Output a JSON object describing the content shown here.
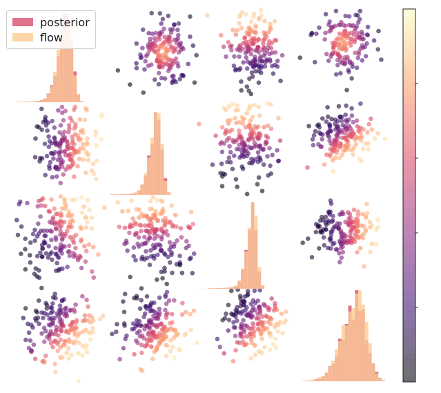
{
  "chart_data": {
    "type": "scatter",
    "figure_kind": "corner-pair-plot",
    "grid": false,
    "axes_ticks_visible": false,
    "n_dims": 4,
    "legend": {
      "placement": "top-left",
      "entries": [
        {
          "label": "posterior",
          "color": "#e0738c"
        },
        {
          "label": "flow",
          "color": "#fdd5a6"
        }
      ]
    },
    "colormap": "magma",
    "colormap_stops": [
      "#000004",
      "#3b0f70",
      "#8c2981",
      "#de4968",
      "#fe9f6d",
      "#fcfdbf"
    ],
    "colorbar": {
      "placement": "right",
      "ticks_labeled": false
    },
    "diagonal_overlap_color": "#f6b794",
    "diagonal_histograms": [
      {
        "dim": 1,
        "mode": 0.62,
        "spread": 0.07,
        "skew": "left",
        "peak_fraction": 0.95
      },
      {
        "dim": 2,
        "mode": 0.58,
        "spread": 0.06,
        "skew": "left",
        "peak_fraction": 0.88
      },
      {
        "dim": 3,
        "mode": 0.6,
        "spread": 0.05,
        "skew": "left",
        "peak_fraction": 0.92
      },
      {
        "dim": 4,
        "mode": 0.72,
        "spread": 0.12,
        "skew": "left",
        "peak_fraction": 0.97
      }
    ],
    "panels": [
      {
        "row": 1,
        "col": 2,
        "cx": 0.64,
        "cy": 0.45,
        "sx": 0.14,
        "sy": 0.17,
        "n": 160,
        "bright": "center"
      },
      {
        "row": 1,
        "col": 3,
        "cx": 0.58,
        "cy": 0.4,
        "sx": 0.14,
        "sy": 0.22,
        "n": 170,
        "bright": "top"
      },
      {
        "row": 1,
        "col": 4,
        "cx": 0.55,
        "cy": 0.35,
        "sx": 0.16,
        "sy": 0.16,
        "n": 150,
        "bright": "center"
      },
      {
        "row": 2,
        "col": 1,
        "cx": 0.6,
        "cy": 0.45,
        "sx": 0.18,
        "sy": 0.2,
        "n": 170,
        "bright": "right"
      },
      {
        "row": 2,
        "col": 3,
        "cx": 0.52,
        "cy": 0.4,
        "sx": 0.16,
        "sy": 0.22,
        "n": 170,
        "bright": "top"
      },
      {
        "row": 2,
        "col": 4,
        "cx": 0.55,
        "cy": 0.35,
        "sx": 0.18,
        "sy": 0.14,
        "n": 160,
        "bright": "bottom-right"
      },
      {
        "row": 3,
        "col": 1,
        "cx": 0.55,
        "cy": 0.4,
        "sx": 0.18,
        "sy": 0.24,
        "n": 180,
        "bright": "top-right"
      },
      {
        "row": 3,
        "col": 2,
        "cx": 0.55,
        "cy": 0.4,
        "sx": 0.18,
        "sy": 0.24,
        "n": 180,
        "bright": "top"
      },
      {
        "row": 3,
        "col": 4,
        "cx": 0.6,
        "cy": 0.35,
        "sx": 0.18,
        "sy": 0.14,
        "n": 160,
        "bright": "right"
      },
      {
        "row": 4,
        "col": 1,
        "cx": 0.55,
        "cy": 0.4,
        "sx": 0.18,
        "sy": 0.2,
        "n": 180,
        "bright": "bottom-right"
      },
      {
        "row": 4,
        "col": 2,
        "cx": 0.55,
        "cy": 0.4,
        "sx": 0.18,
        "sy": 0.2,
        "n": 180,
        "bright": "bottom-right"
      },
      {
        "row": 4,
        "col": 3,
        "cx": 0.6,
        "cy": 0.35,
        "sx": 0.16,
        "sy": 0.18,
        "n": 170,
        "bright": "bottom-right"
      }
    ]
  }
}
